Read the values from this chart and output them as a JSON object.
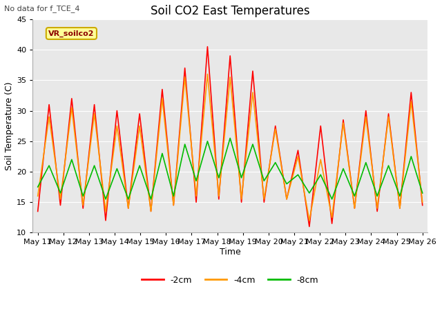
{
  "title": "Soil CO2 East Temperatures",
  "subtitle": "No data for f_TCE_4",
  "xlabel": "Time",
  "ylabel": "Soil Temperature (C)",
  "ylim": [
    10,
    45
  ],
  "background_color": "#ffffff",
  "plot_bg_color": "#e8e8e8",
  "legend_box_color": "#ffff99",
  "legend_box_border": "#ccaa00",
  "legend_label": "VR_soilco2",
  "x_tick_labels": [
    "May 11",
    "May 12",
    "May 13",
    "May 14",
    "May 15",
    "May 16",
    "May 17",
    "May 18",
    "May 19",
    "May 20",
    "May 21",
    "May 22",
    "May 23",
    "May 24",
    "May 25",
    "May 26"
  ],
  "series_2cm_color": "#ff0000",
  "series_4cm_color": "#ff9900",
  "series_8cm_color": "#00bb00",
  "series_linewidth": 1.2,
  "series_2cm_label": "-2cm",
  "series_4cm_label": "-4cm",
  "series_8cm_label": "-8cm",
  "series_2cm": [
    13.5,
    31.0,
    14.5,
    32.0,
    14.0,
    31.0,
    12.0,
    30.0,
    14.0,
    29.5,
    13.5,
    33.5,
    14.5,
    37.0,
    15.0,
    40.5,
    15.5,
    39.0,
    15.0,
    36.5,
    15.0,
    27.5,
    15.5,
    23.5,
    11.0,
    27.5,
    11.5,
    28.5,
    14.0,
    30.0,
    13.5,
    29.5,
    14.0,
    33.0,
    14.5
  ],
  "series_4cm": [
    16.0,
    29.0,
    15.5,
    30.5,
    14.5,
    29.5,
    13.5,
    27.5,
    14.0,
    27.5,
    13.5,
    32.0,
    14.5,
    35.5,
    16.0,
    36.0,
    16.0,
    35.5,
    15.5,
    33.0,
    15.5,
    27.0,
    15.5,
    22.5,
    12.0,
    22.0,
    12.5,
    28.0,
    14.0,
    29.0,
    14.0,
    29.0,
    14.0,
    31.5,
    15.0
  ],
  "series_8cm": [
    17.5,
    21.0,
    16.5,
    22.0,
    16.0,
    21.0,
    15.5,
    20.5,
    15.5,
    21.0,
    15.5,
    23.0,
    16.0,
    24.5,
    18.5,
    25.0,
    19.0,
    25.5,
    19.0,
    24.5,
    18.5,
    21.5,
    18.0,
    19.5,
    16.5,
    19.5,
    15.5,
    20.5,
    16.0,
    21.5,
    16.0,
    21.0,
    16.0,
    22.5,
    16.5
  ],
  "yticks": [
    10,
    15,
    20,
    25,
    30,
    35,
    40,
    45
  ],
  "title_fontsize": 12,
  "subtitle_fontsize": 8,
  "axis_label_fontsize": 9,
  "tick_fontsize": 8,
  "legend_fontsize": 9,
  "annotation_fontsize": 8
}
